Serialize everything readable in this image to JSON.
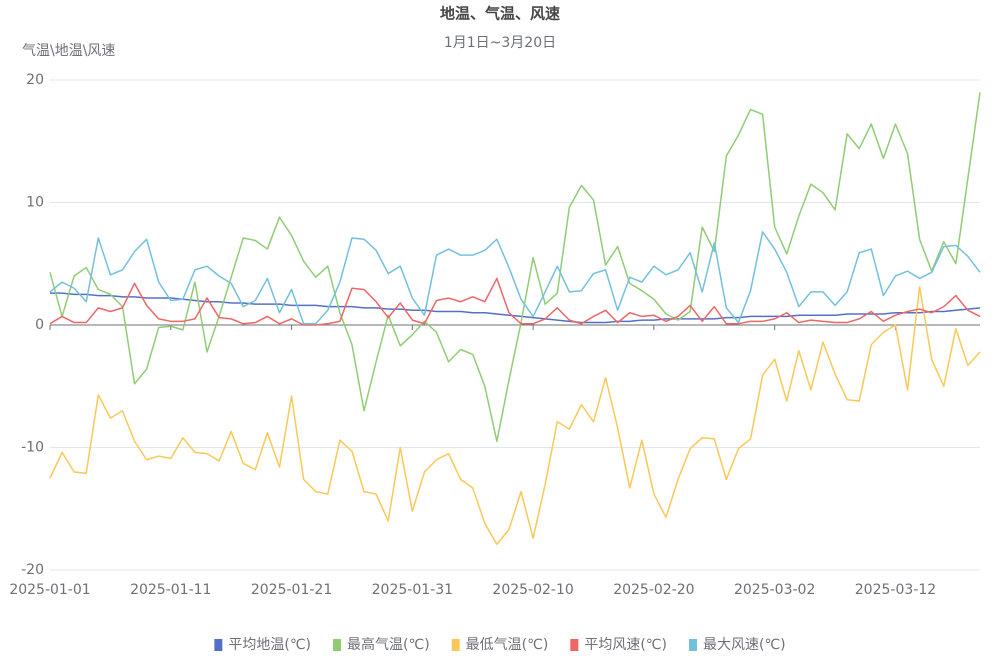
{
  "chart_data": {
    "type": "line",
    "title": "地温、气温、风速",
    "subtitle": "1月1日~3月20日",
    "y_label": "气温\\地温\\风速",
    "x": [
      "2025-01-01",
      null,
      null,
      null,
      null,
      null,
      null,
      null,
      null,
      null,
      "2025-01-11",
      null,
      null,
      null,
      null,
      null,
      null,
      null,
      null,
      null,
      "2025-01-21",
      null,
      null,
      null,
      null,
      null,
      null,
      null,
      null,
      null,
      "2025-01-31",
      null,
      null,
      null,
      null,
      null,
      null,
      null,
      null,
      null,
      "2025-02-10",
      null,
      null,
      null,
      null,
      null,
      null,
      null,
      null,
      null,
      "2025-02-20",
      null,
      null,
      null,
      null,
      null,
      null,
      null,
      null,
      null,
      "2025-03-02",
      null,
      null,
      null,
      null,
      null,
      null,
      null,
      null,
      null,
      "2025-03-12",
      null,
      null,
      null,
      null,
      null,
      null,
      null
    ],
    "ylim": [
      -20,
      20
    ],
    "yticks": [
      -20,
      -10,
      0,
      10,
      20
    ],
    "grid": true,
    "legend": "bottom",
    "series": [
      {
        "name": "平均地温(℃)",
        "color": "#5470c6",
        "values": [
          2.6,
          2.6,
          2.5,
          2.5,
          2.4,
          2.4,
          2.3,
          2.3,
          2.2,
          2.2,
          2.2,
          2.1,
          2.0,
          1.9,
          1.9,
          1.8,
          1.8,
          1.7,
          1.7,
          1.7,
          1.6,
          1.6,
          1.6,
          1.5,
          1.5,
          1.5,
          1.4,
          1.4,
          1.3,
          1.3,
          1.2,
          1.2,
          1.1,
          1.1,
          1.1,
          1.0,
          1.0,
          0.9,
          0.8,
          0.7,
          0.6,
          0.5,
          0.4,
          0.3,
          0.2,
          0.2,
          0.2,
          0.3,
          0.3,
          0.4,
          0.4,
          0.5,
          0.5,
          0.5,
          0.5,
          0.5,
          0.6,
          0.6,
          0.7,
          0.7,
          0.7,
          0.7,
          0.8,
          0.8,
          0.8,
          0.8,
          0.9,
          0.9,
          0.9,
          0.9,
          1.0,
          1.0,
          1.0,
          1.1,
          1.1,
          1.2,
          1.3,
          1.4
        ]
      },
      {
        "name": "最高气温(℃)",
        "color": "#91cc75",
        "values": [
          4.3,
          0.7,
          4.0,
          4.7,
          2.9,
          2.5,
          1.5,
          -4.8,
          -3.6,
          -0.2,
          -0.1,
          -0.4,
          3.5,
          -2.2,
          0.7,
          3.9,
          7.1,
          6.9,
          6.2,
          8.8,
          7.3,
          5.2,
          3.9,
          4.8,
          1.0,
          -1.6,
          -7.0,
          -3.0,
          0.8,
          -1.7,
          -0.8,
          0.3,
          -0.6,
          -3.0,
          -2.0,
          -2.4,
          -5.0,
          -9.5,
          -4.5,
          0.2,
          5.5,
          1.7,
          2.6,
          9.6,
          11.4,
          10.2,
          4.9,
          6.4,
          3.4,
          2.8,
          2.1,
          0.9,
          0.4,
          1.1,
          8.0,
          6.0,
          13.8,
          15.5,
          17.6,
          17.2,
          8.0,
          5.8,
          8.9,
          11.5,
          10.8,
          9.4,
          15.6,
          14.4,
          16.4,
          13.6,
          16.4,
          14.0,
          7.0,
          4.4,
          6.8,
          5.0,
          12.0,
          19.0
        ]
      },
      {
        "name": "最低气温(℃)",
        "color": "#fac858",
        "values": [
          -12.5,
          -10.4,
          -12.0,
          -12.1,
          -5.7,
          -7.6,
          -7.0,
          -9.5,
          -11.0,
          -10.7,
          -10.9,
          -9.2,
          -10.4,
          -10.5,
          -11.1,
          -8.7,
          -11.3,
          -11.8,
          -8.8,
          -11.6,
          -5.8,
          -12.6,
          -13.6,
          -13.8,
          -9.4,
          -10.3,
          -13.6,
          -13.8,
          -16.0,
          -10.0,
          -15.2,
          -12.0,
          -11.0,
          -10.5,
          -12.6,
          -13.3,
          -16.2,
          -17.9,
          -16.7,
          -13.6,
          -17.4,
          -13.0,
          -7.9,
          -8.5,
          -6.5,
          -7.9,
          -4.3,
          -8.4,
          -13.3,
          -9.4,
          -13.8,
          -15.7,
          -12.6,
          -10.1,
          -9.2,
          -9.3,
          -12.6,
          -10.1,
          -9.3,
          -4.1,
          -2.8,
          -6.2,
          -2.1,
          -5.3,
          -1.4,
          -4.0,
          -6.1,
          -6.2,
          -1.6,
          -0.6,
          0.0,
          -5.3,
          3.1,
          -2.8,
          -5.0,
          -0.3,
          -3.3,
          -2.2
        ]
      },
      {
        "name": "平均风速(℃)",
        "color": "#ee6666",
        "values": [
          0.1,
          0.7,
          0.2,
          0.2,
          1.4,
          1.1,
          1.4,
          3.4,
          1.6,
          0.5,
          0.3,
          0.3,
          0.5,
          2.2,
          0.6,
          0.5,
          0.1,
          0.2,
          0.7,
          0.1,
          0.5,
          0.0,
          0.0,
          0.1,
          0.3,
          3.0,
          2.9,
          1.9,
          0.6,
          1.8,
          0.4,
          0.1,
          2.0,
          2.2,
          1.9,
          2.3,
          1.9,
          3.8,
          1.0,
          0.1,
          0.1,
          0.5,
          1.4,
          0.4,
          0.1,
          0.7,
          1.2,
          0.2,
          1.0,
          0.7,
          0.8,
          0.3,
          0.7,
          1.6,
          0.3,
          1.5,
          0.1,
          0.1,
          0.3,
          0.3,
          0.5,
          1.0,
          0.2,
          0.4,
          0.3,
          0.2,
          0.2,
          0.5,
          1.1,
          0.3,
          0.8,
          1.1,
          1.3,
          1.0,
          1.5,
          2.4,
          1.2,
          0.7
        ]
      },
      {
        "name": "最大风速(℃)",
        "color": "#73c0de",
        "values": [
          2.7,
          3.5,
          3.0,
          1.9,
          7.1,
          4.1,
          4.5,
          6.0,
          7.0,
          3.5,
          2.0,
          2.1,
          4.5,
          4.8,
          4.0,
          3.4,
          1.5,
          2.0,
          3.8,
          1.0,
          2.9,
          0.1,
          0.1,
          1.2,
          3.5,
          7.1,
          7.0,
          6.1,
          4.2,
          4.8,
          2.2,
          0.8,
          5.7,
          6.2,
          5.7,
          5.7,
          6.1,
          7.0,
          4.7,
          2.1,
          0.7,
          2.7,
          4.8,
          2.7,
          2.8,
          4.2,
          4.5,
          1.2,
          3.9,
          3.5,
          4.8,
          4.1,
          4.5,
          5.9,
          2.7,
          6.7,
          1.4,
          0.2,
          2.8,
          7.6,
          6.2,
          4.3,
          1.5,
          2.7,
          2.7,
          1.6,
          2.7,
          5.9,
          6.2,
          2.4,
          4.0,
          4.4,
          3.8,
          4.3,
          6.4,
          6.5,
          5.6,
          4.3
        ]
      }
    ]
  }
}
